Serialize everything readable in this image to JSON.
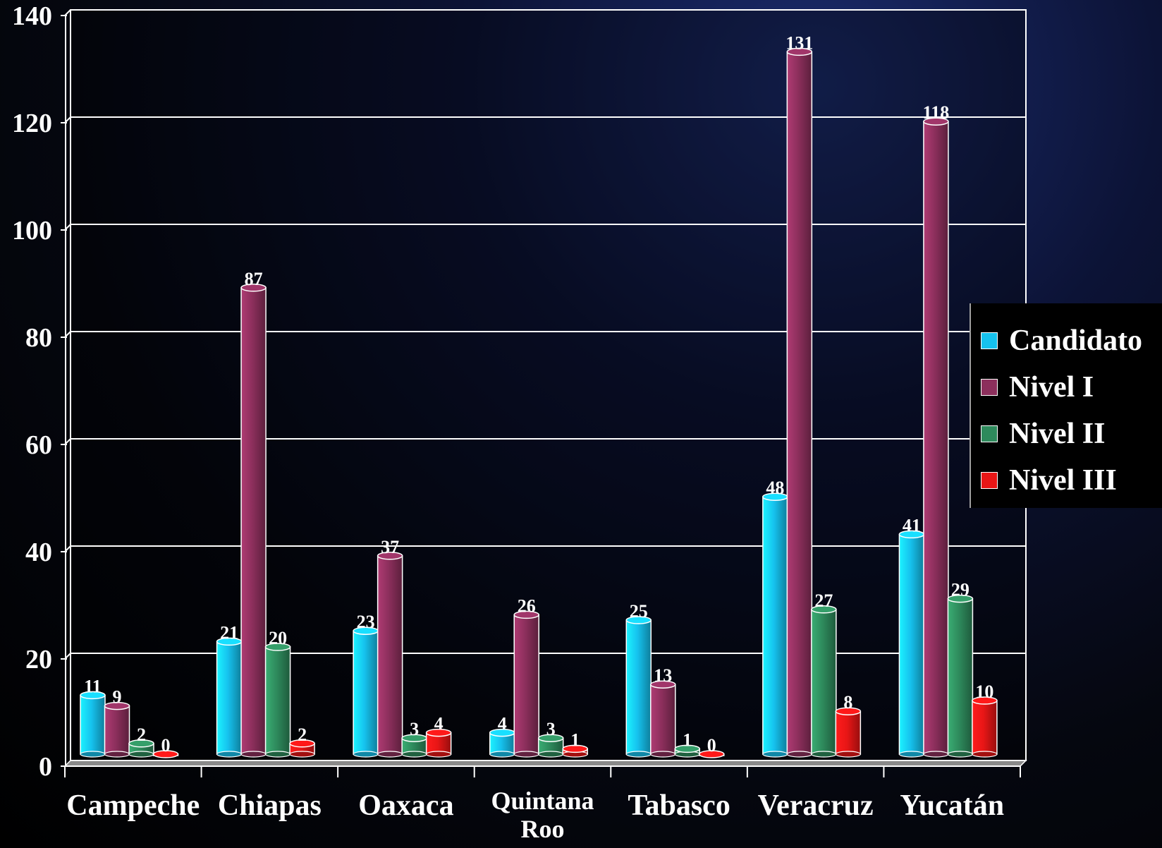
{
  "chart_data": {
    "type": "bar",
    "title": "",
    "xlabel": "",
    "ylabel": "",
    "ylim": [
      0,
      140
    ],
    "yticks": [
      0,
      20,
      40,
      60,
      80,
      100,
      120,
      140
    ],
    "grid": true,
    "legend_position": "right",
    "categories": [
      [
        "Campeche"
      ],
      [
        "Chiapas"
      ],
      [
        "Oaxaca"
      ],
      [
        "Quintana",
        "Roo"
      ],
      [
        "Tabasco"
      ],
      [
        "Veracruz"
      ],
      [
        "Yucatán"
      ]
    ],
    "series": [
      {
        "name": "Candidato",
        "color": "#16c2ee",
        "values": [
          11,
          21,
          23,
          4,
          25,
          48,
          41
        ]
      },
      {
        "name": "Nivel I",
        "color": "#8c2f5c",
        "values": [
          9,
          87,
          37,
          26,
          13,
          131,
          118
        ]
      },
      {
        "name": "Nivel II",
        "color": "#2e8a5c",
        "values": [
          2,
          20,
          3,
          3,
          1,
          27,
          29
        ]
      },
      {
        "name": "Nivel III",
        "color": "#e81616",
        "values": [
          0,
          2,
          4,
          1,
          0,
          8,
          10
        ]
      }
    ]
  }
}
